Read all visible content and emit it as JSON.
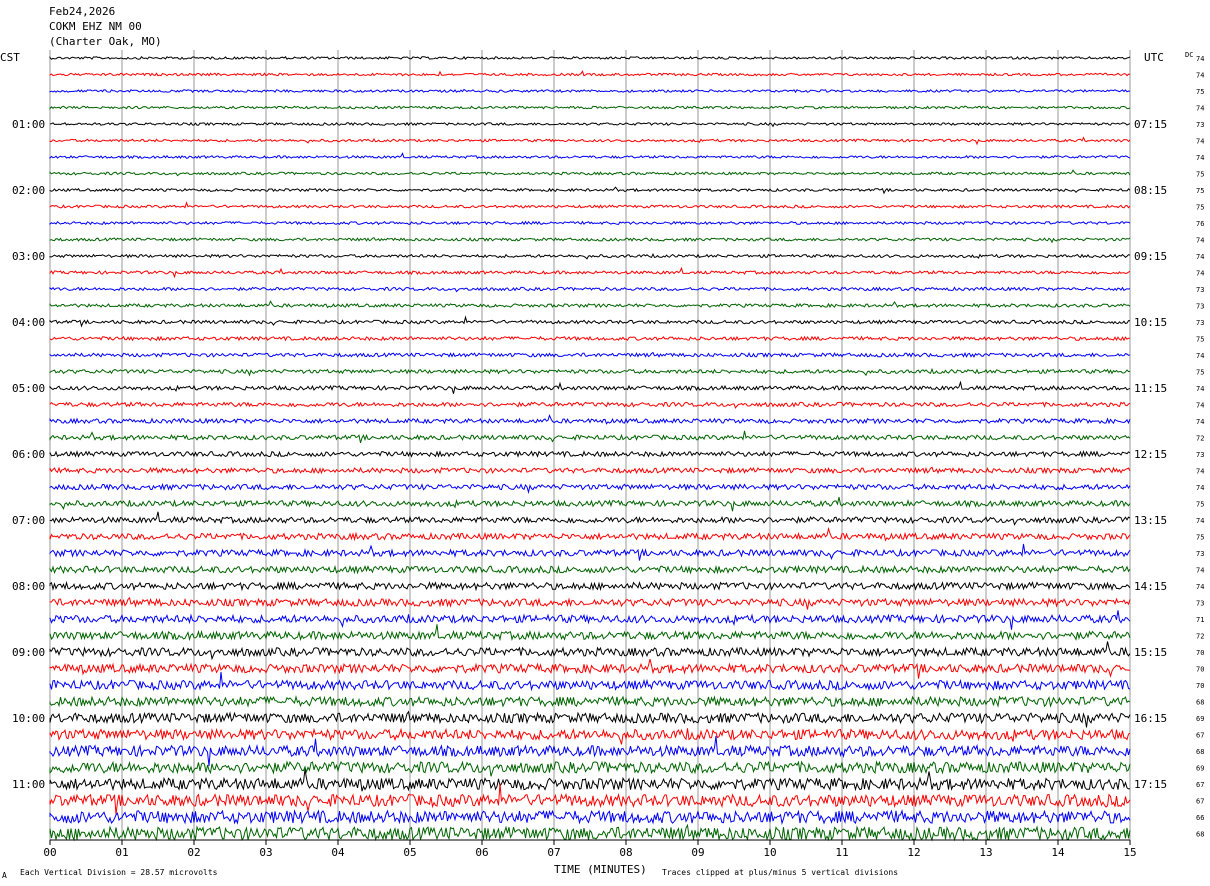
{
  "header": {
    "date": "Feb24,2026",
    "station": "COKM EHZ NM 00",
    "location": "(Charter Oak, MO)"
  },
  "left_timezone": "CST",
  "right_timezone": "UTC",
  "dc_header": "DC",
  "footer": {
    "xlabel": "TIME (MINUTES)",
    "scale_note": "Each Vertical Division =   28.57 microvolts",
    "clip_note": "Traces clipped at plus/minus 5 vertical divisions",
    "corner_mark": "A"
  },
  "chart_data": {
    "type": "line",
    "title": "COKM EHZ NM 00",
    "xlabel": "TIME (MINUTES)",
    "xlim": [
      0,
      15
    ],
    "x_ticks": [
      "00",
      "01",
      "02",
      "03",
      "04",
      "05",
      "06",
      "07",
      "08",
      "09",
      "10",
      "11",
      "12",
      "13",
      "14",
      "15"
    ],
    "trace_count": 48,
    "trace_colors": [
      "#000000",
      "#ff0000",
      "#0000ff",
      "#006400"
    ],
    "left_labels": [
      {
        "row": 4,
        "text": "01:00"
      },
      {
        "row": 8,
        "text": "02:00"
      },
      {
        "row": 12,
        "text": "03:00"
      },
      {
        "row": 16,
        "text": "04:00"
      },
      {
        "row": 20,
        "text": "05:00"
      },
      {
        "row": 24,
        "text": "06:00"
      },
      {
        "row": 28,
        "text": "07:00"
      },
      {
        "row": 32,
        "text": "08:00"
      },
      {
        "row": 36,
        "text": "09:00"
      },
      {
        "row": 40,
        "text": "10:00"
      },
      {
        "row": 44,
        "text": "11:00"
      }
    ],
    "right_labels": [
      {
        "row": 4,
        "text": "07:15"
      },
      {
        "row": 8,
        "text": "08:15"
      },
      {
        "row": 12,
        "text": "09:15"
      },
      {
        "row": 16,
        "text": "10:15"
      },
      {
        "row": 20,
        "text": "11:15"
      },
      {
        "row": 24,
        "text": "12:15"
      },
      {
        "row": 28,
        "text": "13:15"
      },
      {
        "row": 32,
        "text": "14:15"
      },
      {
        "row": 36,
        "text": "15:15"
      },
      {
        "row": 40,
        "text": "16:15"
      },
      {
        "row": 44,
        "text": "17:15"
      }
    ],
    "dc_values": [
      "74",
      "74",
      "75",
      "74",
      "73",
      "74",
      "74",
      "75",
      "75",
      "75",
      "76",
      "74",
      "74",
      "74",
      "73",
      "73",
      "73",
      "75",
      "74",
      "75",
      "74",
      "74",
      "74",
      "72",
      "73",
      "74",
      "74",
      "75",
      "74",
      "75",
      "73",
      "74",
      "74",
      "73",
      "71",
      "72",
      "70",
      "70",
      "70",
      "68",
      "69",
      "67",
      "68",
      "69",
      "67",
      "67",
      "66",
      "68"
    ]
  }
}
